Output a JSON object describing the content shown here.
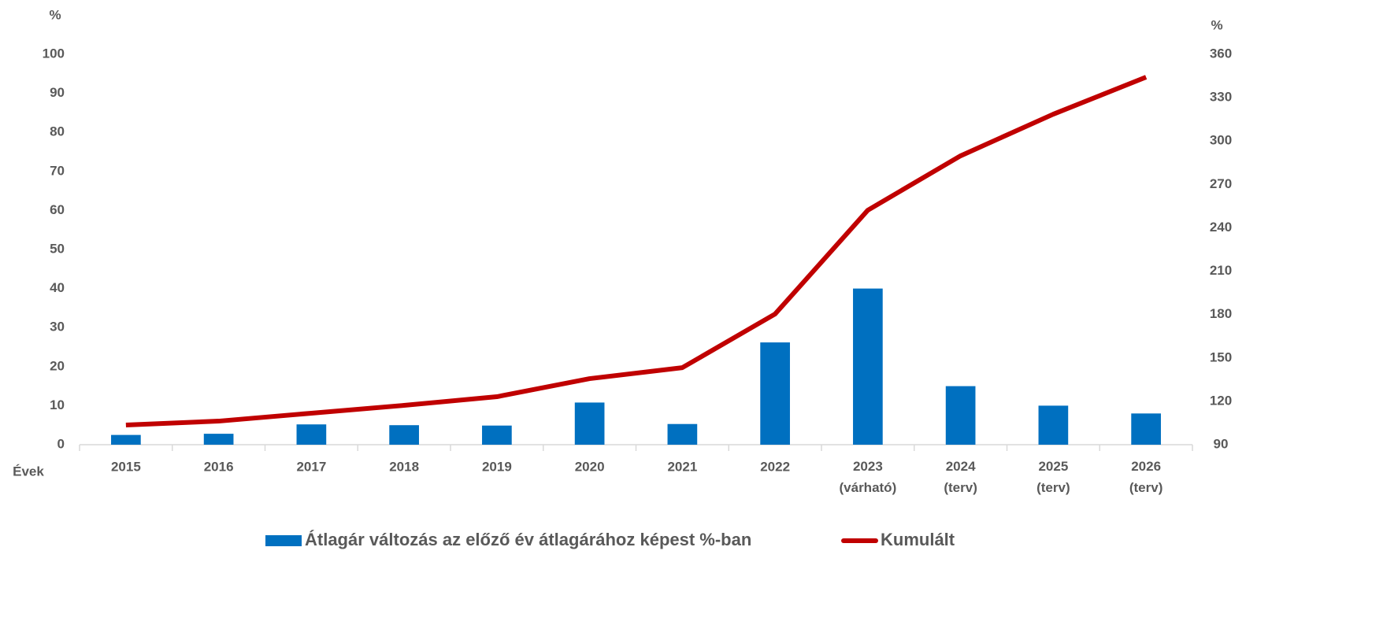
{
  "chart_data": {
    "type": "bar_line",
    "y_unit": "%",
    "y2_unit": "%",
    "x_label": "Évek",
    "categories": [
      "2015",
      "2016",
      "2017",
      "2018",
      "2019",
      "2020",
      "2021",
      "2022",
      "2023\n(várható)",
      "2024\n(terv)",
      "2025\n(terv)",
      "2026\n(terv)"
    ],
    "series": [
      {
        "name": "Átlagár változás az előző év átlagárához képest %-ban",
        "type": "bar",
        "color": "#0070c0",
        "values": [
          2.5,
          2.8,
          5.2,
          5.0,
          4.9,
          10.8,
          5.3,
          26.2,
          40.0,
          15.0,
          10.0,
          8.0
        ]
      },
      {
        "name": "Kumulált",
        "type": "line",
        "axis": "y2",
        "color": "#c00000",
        "values": [
          103.6,
          106.3,
          111.8,
          117.2,
          123.2,
          135.7,
          143.3,
          180.4,
          252.2,
          289.8,
          318.6,
          344.2
        ]
      }
    ],
    "ylim": [
      0,
      100
    ],
    "yticks": [
      0,
      10,
      20,
      30,
      40,
      50,
      60,
      70,
      80,
      90,
      100
    ],
    "y2lim": [
      90,
      360
    ],
    "y2ticks": [
      90,
      120,
      150,
      180,
      210,
      240,
      270,
      300,
      330,
      360
    ],
    "legend": "bottom"
  }
}
